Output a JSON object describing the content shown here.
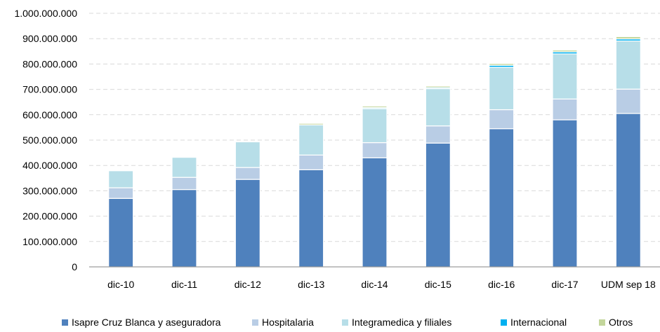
{
  "chart_data": {
    "type": "bar",
    "stacked": true,
    "categories": [
      "dic-10",
      "dic-11",
      "dic-12",
      "dic-13",
      "dic-14",
      "dic-15",
      "dic-16",
      "dic-17",
      "UDM sep 18"
    ],
    "series": [
      {
        "name": "Isapre Cruz Blanca y aseguradora",
        "color": "#4f81bd",
        "values": [
          270000000,
          305000000,
          345000000,
          383000000,
          430000000,
          488000000,
          545000000,
          580000000,
          605000000
        ]
      },
      {
        "name": "Hospitalaria",
        "color": "#b9cde5",
        "values": [
          42000000,
          48000000,
          47000000,
          58000000,
          60000000,
          68000000,
          75000000,
          82000000,
          96000000
        ]
      },
      {
        "name": "Integramedica y filiales",
        "color": "#b7dee8",
        "values": [
          67000000,
          79000000,
          101000000,
          119000000,
          134000000,
          147000000,
          167000000,
          178000000,
          190000000
        ]
      },
      {
        "name": "Internacional",
        "color": "#00b0f0",
        "values": [
          0,
          0,
          0,
          0,
          4000000,
          4000000,
          8000000,
          8000000,
          8000000
        ]
      },
      {
        "name": "Otros",
        "color": "#c3d69b",
        "values": [
          0,
          0,
          0,
          6000000,
          6000000,
          6000000,
          7000000,
          7000000,
          9000000
        ]
      }
    ],
    "y_ticks": [
      "0",
      "100.000.000",
      "200.000.000",
      "300.000.000",
      "400.000.000",
      "500.000.000",
      "600.000.000",
      "700.000.000",
      "800.000.000",
      "900.000.000",
      "1.000.000.000"
    ],
    "ylim": [
      0,
      1000000000
    ],
    "grid": true,
    "legend_position": "bottom"
  }
}
